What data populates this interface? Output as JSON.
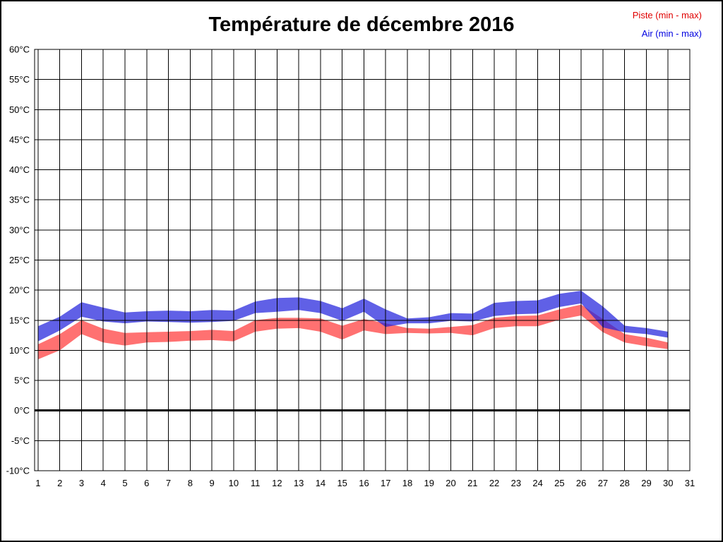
{
  "header": {
    "title": "Température de décembre 2016",
    "legend": [
      {
        "label": "Piste (min - max)",
        "color": "#e00000"
      },
      {
        "label": "Air (min - max)",
        "color": "#0000e0"
      }
    ]
  },
  "chart_data": {
    "type": "area",
    "title": "Température de décembre 2016",
    "xlabel": "",
    "ylabel": "",
    "xlim": [
      0.84,
      31
    ],
    "ylim": [
      -10,
      60
    ],
    "grid": true,
    "zero_line": true,
    "legend_position": "top-right",
    "days": [
      1,
      2,
      3,
      4,
      5,
      6,
      7,
      8,
      9,
      10,
      11,
      12,
      13,
      14,
      15,
      16,
      17,
      18,
      19,
      20,
      21,
      22,
      23,
      24,
      25,
      26,
      27,
      28,
      29,
      30
    ],
    "x_ticks": [
      1,
      2,
      3,
      4,
      5,
      6,
      7,
      8,
      9,
      10,
      11,
      12,
      13,
      14,
      15,
      16,
      17,
      18,
      19,
      20,
      21,
      22,
      23,
      24,
      25,
      26,
      27,
      28,
      29,
      30,
      31
    ],
    "y_ticks": [
      {
        "value": 60,
        "label": "60°C"
      },
      {
        "value": 55,
        "label": "55°C"
      },
      {
        "value": 50,
        "label": "50°C"
      },
      {
        "value": 45,
        "label": "45°C"
      },
      {
        "value": 40,
        "label": "40°C"
      },
      {
        "value": 35,
        "label": "35°C"
      },
      {
        "value": 30,
        "label": "30°C"
      },
      {
        "value": 25,
        "label": "25°C"
      },
      {
        "value": 20,
        "label": "20°C"
      },
      {
        "value": 15,
        "label": "15°C"
      },
      {
        "value": 10,
        "label": "10°C"
      },
      {
        "value": 5,
        "label": "5°C"
      },
      {
        "value": 0,
        "label": "0°C"
      },
      {
        "value": -5,
        "label": "-5°C"
      },
      {
        "value": -10,
        "label": "-10°C"
      }
    ],
    "series": [
      {
        "id": "piste",
        "name": "Piste (min - max)",
        "fill": "#ff2e2e",
        "opacity": 0.68,
        "min": [
          8.5,
          10.0,
          12.7,
          11.3,
          10.8,
          11.3,
          11.4,
          11.6,
          11.7,
          11.5,
          13.1,
          13.6,
          13.7,
          13.1,
          11.8,
          13.3,
          12.7,
          12.9,
          12.8,
          12.9,
          12.5,
          13.7,
          14.0,
          14.0,
          15.1,
          15.8,
          13.0,
          11.3,
          10.7,
          10.2
        ],
        "max": [
          11.0,
          12.7,
          15.0,
          13.6,
          12.9,
          13.0,
          13.1,
          13.2,
          13.4,
          13.2,
          15.0,
          15.4,
          15.4,
          15.3,
          14.1,
          15.2,
          14.5,
          13.7,
          13.6,
          13.9,
          14.2,
          15.4,
          15.7,
          15.8,
          16.8,
          17.6,
          15.2,
          12.7,
          12.1,
          11.3
        ]
      },
      {
        "id": "air",
        "name": "Air (min - max)",
        "fill": "#2222dd",
        "opacity": 0.72,
        "min": [
          11.5,
          13.3,
          15.6,
          14.8,
          14.5,
          14.8,
          14.7,
          14.6,
          14.7,
          14.9,
          16.2,
          16.4,
          16.7,
          16.2,
          14.9,
          16.4,
          13.9,
          14.5,
          14.5,
          14.9,
          14.8,
          15.7,
          16.0,
          16.1,
          17.2,
          17.8,
          13.8,
          13.0,
          12.7,
          12.1
        ],
        "max": [
          14.0,
          15.6,
          18.0,
          17.1,
          16.3,
          16.5,
          16.6,
          16.5,
          16.7,
          16.6,
          18.1,
          18.7,
          18.8,
          18.2,
          17.0,
          18.6,
          16.8,
          15.3,
          15.5,
          16.2,
          16.1,
          17.9,
          18.2,
          18.3,
          19.4,
          19.9,
          17.3,
          14.1,
          13.7,
          13.1
        ]
      }
    ]
  }
}
